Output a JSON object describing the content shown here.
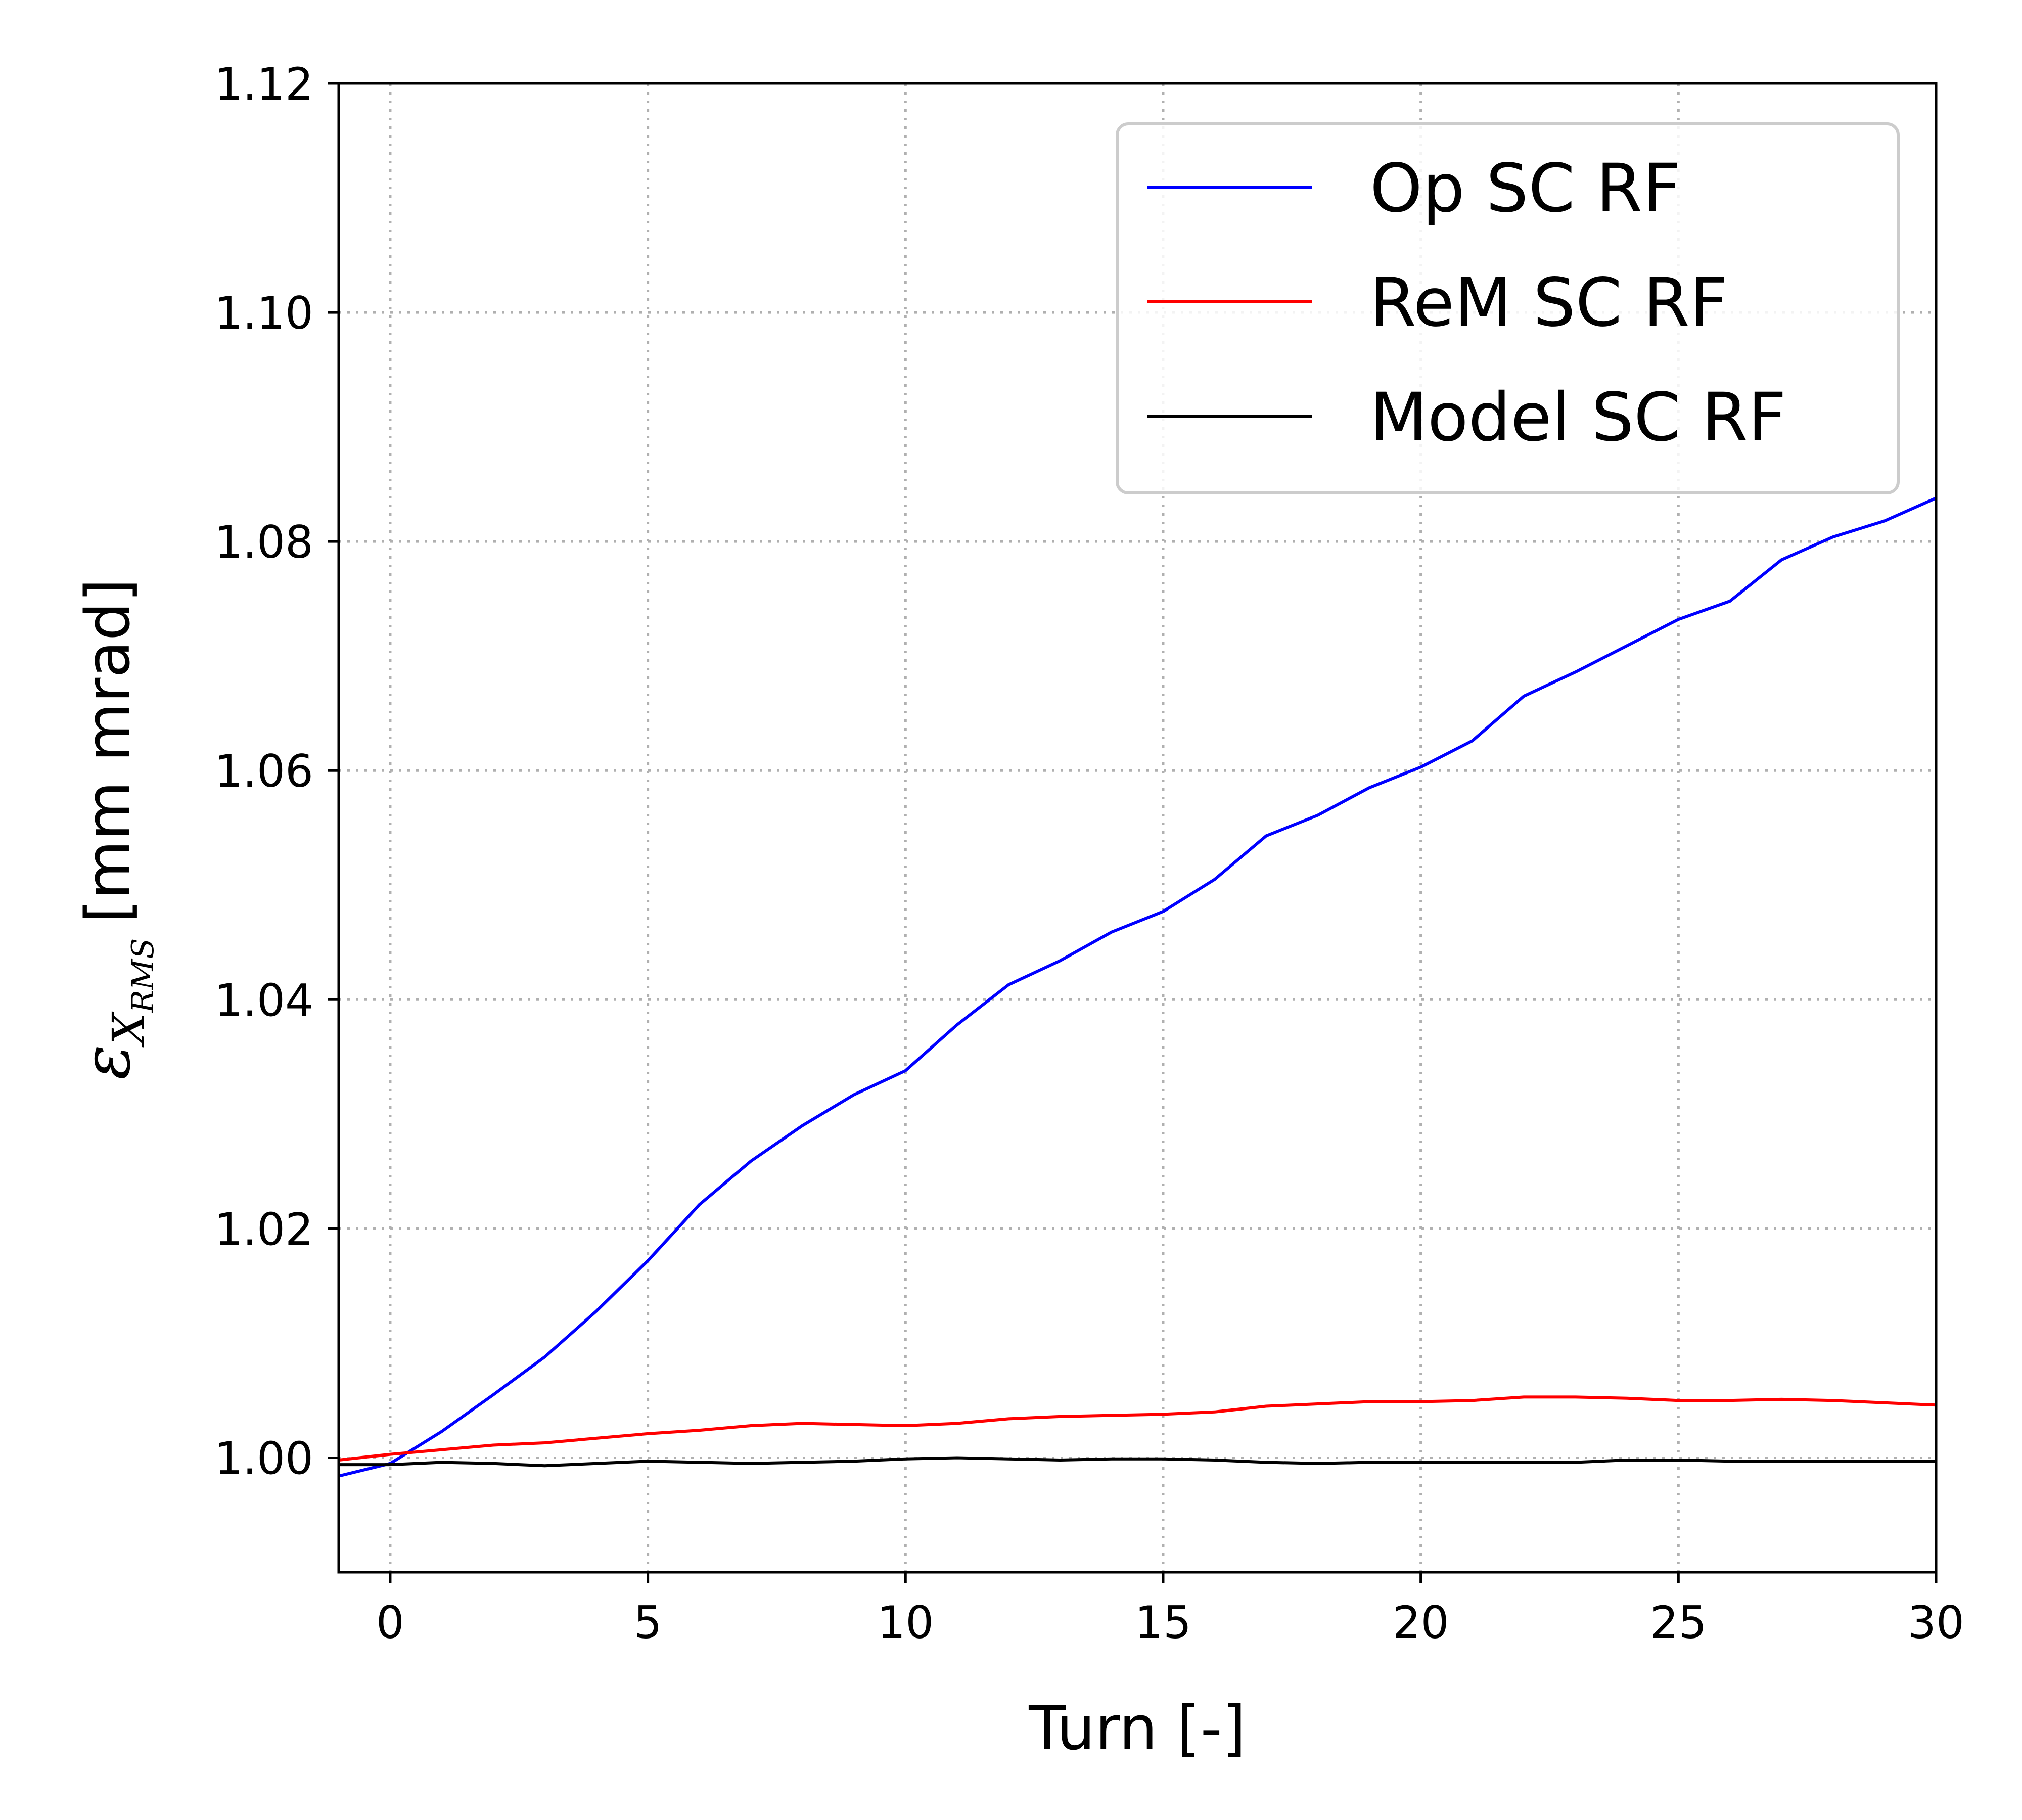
{
  "chart_data": {
    "type": "line",
    "title": "",
    "xlabel": "Turn [-]",
    "ylabel": {
      "symbol": "ε",
      "sub": "X",
      "subsub": "RMS",
      "unit": "[mm mrad]"
    },
    "xlim": [
      -1,
      30
    ],
    "ylim": [
      0.99,
      1.12
    ],
    "xticks": [
      0,
      5,
      10,
      15,
      20,
      25,
      30
    ],
    "xtick_labels": [
      "0",
      "5",
      "10",
      "15",
      "20",
      "25",
      "30"
    ],
    "yticks": [
      1.0,
      1.02,
      1.04,
      1.06,
      1.08,
      1.1,
      1.12
    ],
    "ytick_labels": [
      "1.00",
      "1.02",
      "1.04",
      "1.06",
      "1.08",
      "1.10",
      "1.12"
    ],
    "grid": true,
    "legend_position": "top-right",
    "x": [
      -1,
      0,
      1,
      2,
      3,
      4,
      5,
      6,
      7,
      8,
      9,
      10,
      11,
      12,
      13,
      14,
      15,
      16,
      17,
      18,
      19,
      20,
      21,
      22,
      23,
      24,
      25,
      26,
      27,
      28,
      29,
      30
    ],
    "series": [
      {
        "name": "Op SC RF",
        "color": "#0000ff",
        "values": [
          0.9984,
          0.9995,
          1.0023,
          1.0055,
          1.0088,
          1.0128,
          1.0172,
          1.0221,
          1.0259,
          1.029,
          1.0317,
          1.0338,
          1.0378,
          1.0413,
          1.0434,
          1.0459,
          1.0477,
          1.0505,
          1.0543,
          1.0561,
          1.0585,
          1.0603,
          1.0626,
          1.0665,
          1.0686,
          1.0709,
          1.0732,
          1.0748,
          1.0784,
          1.0804,
          1.0818,
          1.0838
        ]
      },
      {
        "name": "ReM SC RF",
        "color": "#ff0000",
        "values": [
          0.9998,
          1.0003,
          1.0007,
          1.0011,
          1.0013,
          1.0017,
          1.0021,
          1.0024,
          1.0028,
          1.003,
          1.0029,
          1.0028,
          1.003,
          1.0034,
          1.0036,
          1.0037,
          1.0038,
          1.004,
          1.0045,
          1.0047,
          1.0049,
          1.0049,
          1.005,
          1.0053,
          1.0053,
          1.0052,
          1.005,
          1.005,
          1.0051,
          1.005,
          1.0048,
          1.0046
        ]
      },
      {
        "name": "Model SC RF",
        "color": "#000000",
        "values": [
          0.9994,
          0.9994,
          0.9996,
          0.9995,
          0.9993,
          0.9995,
          0.9997,
          0.9996,
          0.9995,
          0.9996,
          0.9997,
          0.9999,
          1.0,
          0.9999,
          0.9998,
          0.9999,
          0.9999,
          0.9998,
          0.9996,
          0.9995,
          0.9996,
          0.9996,
          0.9996,
          0.9996,
          0.9996,
          0.9998,
          0.9998,
          0.9997,
          0.9997,
          0.9997,
          0.9997,
          0.9997
        ]
      }
    ]
  }
}
